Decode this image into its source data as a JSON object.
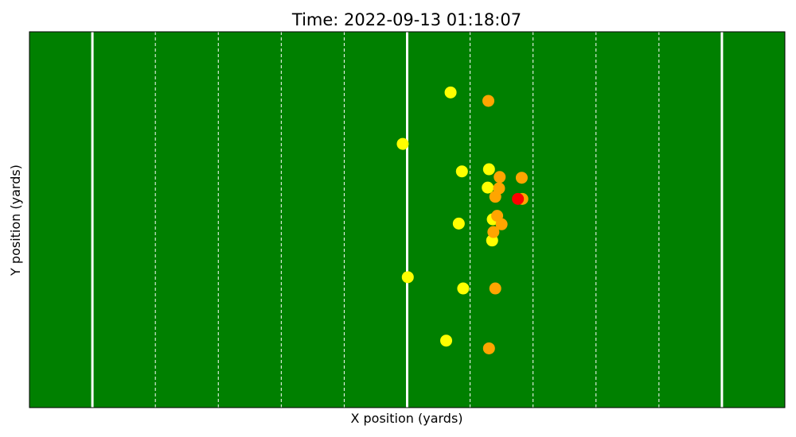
{
  "chart_data": {
    "type": "scatter",
    "title": "Time: 2022-09-13 01:18:07",
    "xlabel": "X position (yards)",
    "ylabel": "Y position (yards)",
    "xlim": [
      0,
      120
    ],
    "ylim": [
      0,
      53.3
    ],
    "grid": false,
    "field_color": "#008000",
    "line_color": "#ffffff",
    "solid_lines_x": [
      10,
      60,
      110
    ],
    "dashed_lines_x": [
      20,
      30,
      40,
      50,
      70,
      80,
      90,
      100
    ],
    "series": [
      {
        "color": "#ffff00",
        "points": [
          {
            "x": 66.9,
            "y": 44.7
          },
          {
            "x": 59.3,
            "y": 37.4
          },
          {
            "x": 68.7,
            "y": 33.5
          },
          {
            "x": 73.0,
            "y": 33.8
          },
          {
            "x": 72.8,
            "y": 31.2
          },
          {
            "x": 73.6,
            "y": 26.7
          },
          {
            "x": 68.2,
            "y": 26.1
          },
          {
            "x": 73.5,
            "y": 23.7
          },
          {
            "x": 60.1,
            "y": 18.5
          },
          {
            "x": 68.9,
            "y": 16.9
          },
          {
            "x": 66.2,
            "y": 9.5
          }
        ]
      },
      {
        "color": "#ffa500",
        "points": [
          {
            "x": 72.9,
            "y": 43.5
          },
          {
            "x": 74.7,
            "y": 32.7
          },
          {
            "x": 78.2,
            "y": 32.6
          },
          {
            "x": 74.6,
            "y": 31.1
          },
          {
            "x": 74.0,
            "y": 29.9
          },
          {
            "x": 78.3,
            "y": 29.6
          },
          {
            "x": 74.3,
            "y": 27.2
          },
          {
            "x": 75.0,
            "y": 26.0
          },
          {
            "x": 73.7,
            "y": 24.9
          },
          {
            "x": 74.0,
            "y": 16.9
          },
          {
            "x": 73.0,
            "y": 8.4
          }
        ]
      },
      {
        "color": "#ff0000",
        "points": [
          {
            "x": 77.6,
            "y": 29.6
          }
        ]
      }
    ]
  }
}
